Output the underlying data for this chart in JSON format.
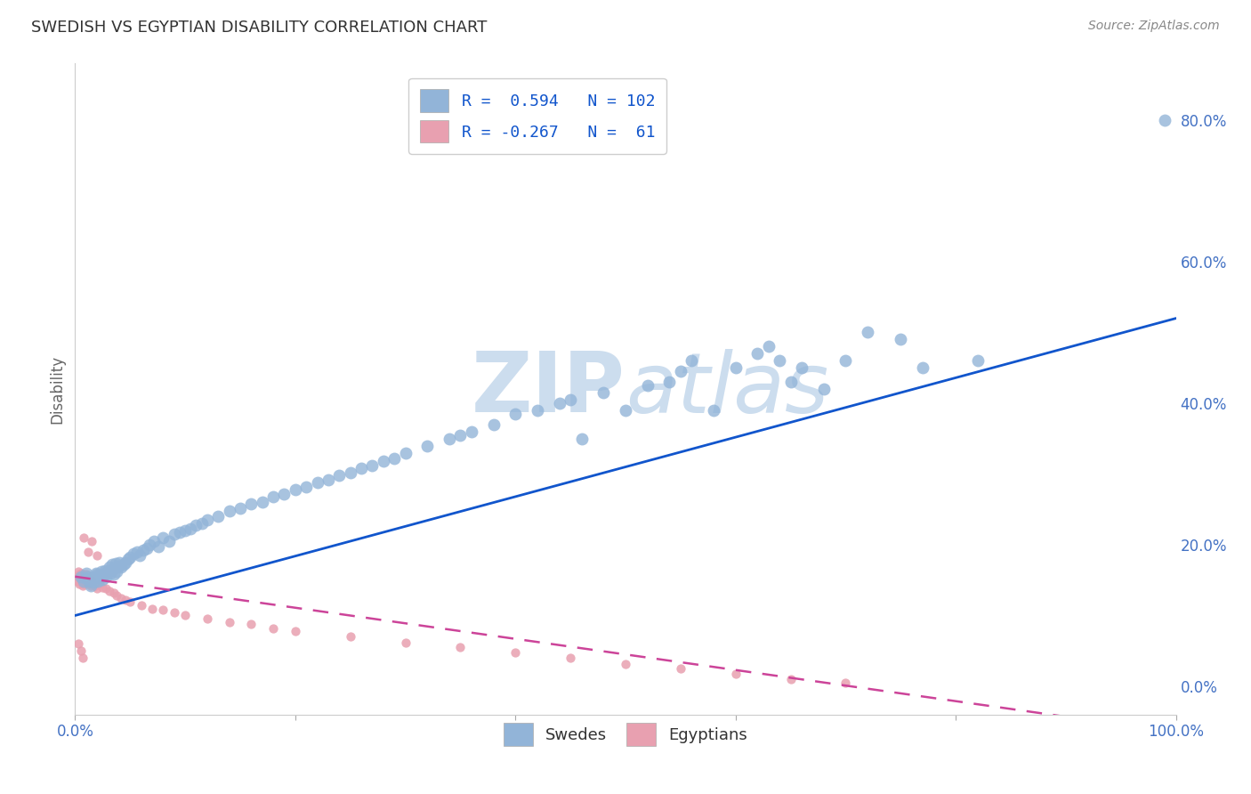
{
  "title": "SWEDISH VS EGYPTIAN DISABILITY CORRELATION CHART",
  "source_text": "Source: ZipAtlas.com",
  "ylabel": "Disability",
  "xlim": [
    0,
    1.0
  ],
  "ylim": [
    -0.04,
    0.88
  ],
  "blue_color": "#92b4d8",
  "pink_color": "#e8a0b0",
  "blue_line_color": "#1155cc",
  "pink_line_color": "#cc4499",
  "background_color": "#ffffff",
  "grid_color": "#cccccc",
  "title_color": "#333333",
  "axis_label_color": "#666666",
  "tick_color": "#4472c4",
  "source_color": "#888888",
  "legend_text_color": "#1155cc",
  "watermark_color": "#ccddee",
  "blue_line_intercept": 0.1,
  "blue_line_slope": 0.42,
  "pink_line_intercept": 0.155,
  "pink_line_slope": -0.22,
  "swedes_x": [
    0.005,
    0.008,
    0.01,
    0.01,
    0.012,
    0.013,
    0.014,
    0.015,
    0.016,
    0.017,
    0.018,
    0.019,
    0.02,
    0.021,
    0.022,
    0.023,
    0.024,
    0.025,
    0.026,
    0.027,
    0.028,
    0.03,
    0.031,
    0.032,
    0.033,
    0.034,
    0.035,
    0.036,
    0.037,
    0.038,
    0.039,
    0.04,
    0.042,
    0.044,
    0.046,
    0.048,
    0.05,
    0.053,
    0.056,
    0.059,
    0.062,
    0.065,
    0.068,
    0.072,
    0.076,
    0.08,
    0.085,
    0.09,
    0.095,
    0.1,
    0.105,
    0.11,
    0.115,
    0.12,
    0.13,
    0.14,
    0.15,
    0.16,
    0.17,
    0.18,
    0.19,
    0.2,
    0.21,
    0.22,
    0.23,
    0.24,
    0.25,
    0.26,
    0.27,
    0.28,
    0.29,
    0.3,
    0.32,
    0.34,
    0.35,
    0.36,
    0.38,
    0.4,
    0.42,
    0.44,
    0.45,
    0.46,
    0.48,
    0.5,
    0.52,
    0.54,
    0.55,
    0.56,
    0.58,
    0.6,
    0.62,
    0.63,
    0.64,
    0.65,
    0.66,
    0.68,
    0.7,
    0.72,
    0.75,
    0.77,
    0.82,
    0.99
  ],
  "swedes_y": [
    0.155,
    0.148,
    0.16,
    0.152,
    0.155,
    0.148,
    0.142,
    0.151,
    0.153,
    0.147,
    0.155,
    0.16,
    0.158,
    0.149,
    0.153,
    0.157,
    0.162,
    0.151,
    0.158,
    0.163,
    0.155,
    0.162,
    0.168,
    0.16,
    0.165,
    0.172,
    0.159,
    0.167,
    0.174,
    0.162,
    0.17,
    0.175,
    0.168,
    0.172,
    0.175,
    0.18,
    0.182,
    0.188,
    0.19,
    0.185,
    0.192,
    0.195,
    0.2,
    0.205,
    0.198,
    0.21,
    0.205,
    0.215,
    0.218,
    0.22,
    0.222,
    0.228,
    0.23,
    0.235,
    0.24,
    0.248,
    0.252,
    0.258,
    0.26,
    0.268,
    0.272,
    0.278,
    0.282,
    0.288,
    0.292,
    0.298,
    0.302,
    0.308,
    0.312,
    0.318,
    0.322,
    0.33,
    0.34,
    0.35,
    0.355,
    0.36,
    0.37,
    0.385,
    0.39,
    0.4,
    0.405,
    0.35,
    0.415,
    0.39,
    0.425,
    0.43,
    0.445,
    0.46,
    0.39,
    0.45,
    0.47,
    0.48,
    0.46,
    0.43,
    0.45,
    0.42,
    0.46,
    0.5,
    0.49,
    0.45,
    0.46,
    0.8
  ],
  "egyptians_x": [
    0.002,
    0.003,
    0.003,
    0.004,
    0.004,
    0.005,
    0.005,
    0.006,
    0.006,
    0.007,
    0.007,
    0.008,
    0.008,
    0.009,
    0.009,
    0.01,
    0.01,
    0.011,
    0.012,
    0.013,
    0.014,
    0.015,
    0.016,
    0.018,
    0.02,
    0.022,
    0.025,
    0.028,
    0.031,
    0.035,
    0.038,
    0.042,
    0.046,
    0.05,
    0.06,
    0.07,
    0.08,
    0.09,
    0.1,
    0.12,
    0.14,
    0.16,
    0.18,
    0.2,
    0.25,
    0.3,
    0.35,
    0.4,
    0.45,
    0.5,
    0.55,
    0.6,
    0.65,
    0.7,
    0.008,
    0.012,
    0.015,
    0.02,
    0.003,
    0.005,
    0.007
  ],
  "egyptians_y": [
    0.148,
    0.155,
    0.162,
    0.145,
    0.158,
    0.152,
    0.16,
    0.148,
    0.155,
    0.142,
    0.15,
    0.158,
    0.145,
    0.152,
    0.148,
    0.155,
    0.158,
    0.15,
    0.148,
    0.145,
    0.142,
    0.15,
    0.145,
    0.142,
    0.138,
    0.145,
    0.14,
    0.138,
    0.135,
    0.132,
    0.128,
    0.125,
    0.122,
    0.12,
    0.115,
    0.11,
    0.108,
    0.105,
    0.1,
    0.095,
    0.09,
    0.088,
    0.082,
    0.078,
    0.07,
    0.062,
    0.055,
    0.048,
    0.04,
    0.032,
    0.025,
    0.018,
    0.01,
    0.005,
    0.21,
    0.19,
    0.205,
    0.185,
    0.06,
    0.05,
    0.04
  ]
}
